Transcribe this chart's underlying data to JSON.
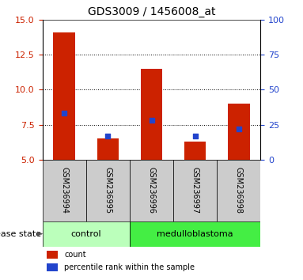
{
  "title": "GDS3009 / 1456008_at",
  "samples": [
    "GSM236994",
    "GSM236995",
    "GSM236996",
    "GSM236997",
    "GSM236998"
  ],
  "red_values": [
    14.1,
    6.5,
    11.5,
    6.3,
    9.0
  ],
  "blue_values": [
    8.3,
    6.7,
    7.8,
    6.7,
    7.2
  ],
  "ylim_left": [
    5,
    15
  ],
  "ylim_right": [
    0,
    100
  ],
  "left_ticks": [
    5,
    7.5,
    10,
    12.5,
    15
  ],
  "right_ticks": [
    0,
    25,
    50,
    75,
    100
  ],
  "disease_groups": [
    {
      "label": "control",
      "samples": [
        0,
        1
      ],
      "color": "#bbffbb"
    },
    {
      "label": "medulloblastoma",
      "samples": [
        2,
        3,
        4
      ],
      "color": "#44ee44"
    }
  ],
  "disease_state_label": "disease state",
  "legend_red": "count",
  "legend_blue": "percentile rank within the sample",
  "bar_color": "#cc2200",
  "blue_color": "#2244cc",
  "bar_width": 0.5,
  "tick_label_color_left": "#cc2200",
  "tick_label_color_right": "#2244cc",
  "sample_box_color": "#cccccc",
  "sample_label_fontsize": 7,
  "title_fontsize": 10,
  "axis_fontsize": 8,
  "legend_fontsize": 7
}
